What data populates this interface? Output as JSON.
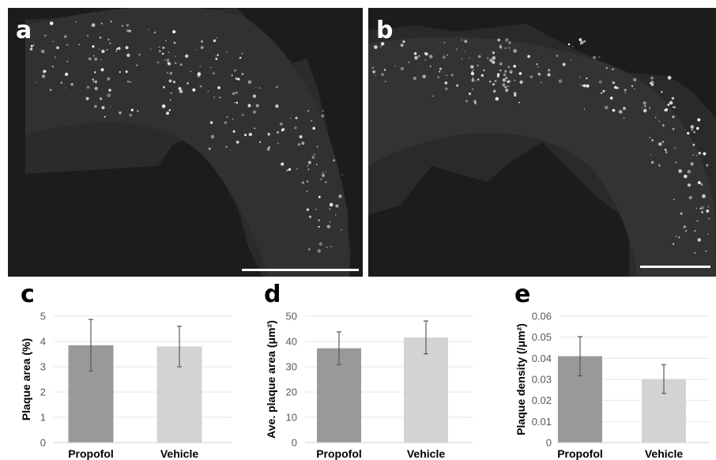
{
  "panels": {
    "a": {
      "letter": "a"
    },
    "b": {
      "letter": "b"
    },
    "c": {
      "letter": "c"
    },
    "d": {
      "letter": "d"
    },
    "e": {
      "letter": "e"
    }
  },
  "colors": {
    "propofol": "#999999",
    "vehicle": "#d3d3d3",
    "micrograph_bg": "#1c1c1c",
    "tissue": "#2e2e2e",
    "grid": "#e6e6e6"
  },
  "chart_data": [
    {
      "panel": "c",
      "type": "bar",
      "categories": [
        "Propofol",
        "Vehicle"
      ],
      "values": [
        3.85,
        3.8
      ],
      "errors": [
        1.02,
        0.8
      ],
      "ylabel": "Plaque area (%)",
      "ylim": [
        0,
        5
      ],
      "yticks": [
        "0",
        "1",
        "2",
        "3",
        "4",
        "5"
      ],
      "grid": true
    },
    {
      "panel": "d",
      "type": "bar",
      "categories": [
        "Propofol",
        "Vehicle"
      ],
      "values": [
        37.3,
        41.6
      ],
      "errors": [
        6.5,
        6.5
      ],
      "ylabel": "Ave. plaque area (μm²)",
      "ylim": [
        0,
        50
      ],
      "yticks": [
        "0",
        "10",
        "20",
        "30",
        "40",
        "50"
      ],
      "grid": true
    },
    {
      "panel": "e",
      "type": "bar",
      "categories": [
        "Propofol",
        "Vehicle"
      ],
      "values": [
        0.041,
        0.0302
      ],
      "errors": [
        0.0093,
        0.0068
      ],
      "ylabel": "Plaque density (/μm²)",
      "ylim": [
        0,
        0.06
      ],
      "yticks": [
        "0",
        "0.01",
        "0.02",
        "0.03",
        "0.04",
        "0.05",
        "0.06"
      ],
      "grid": true
    }
  ]
}
